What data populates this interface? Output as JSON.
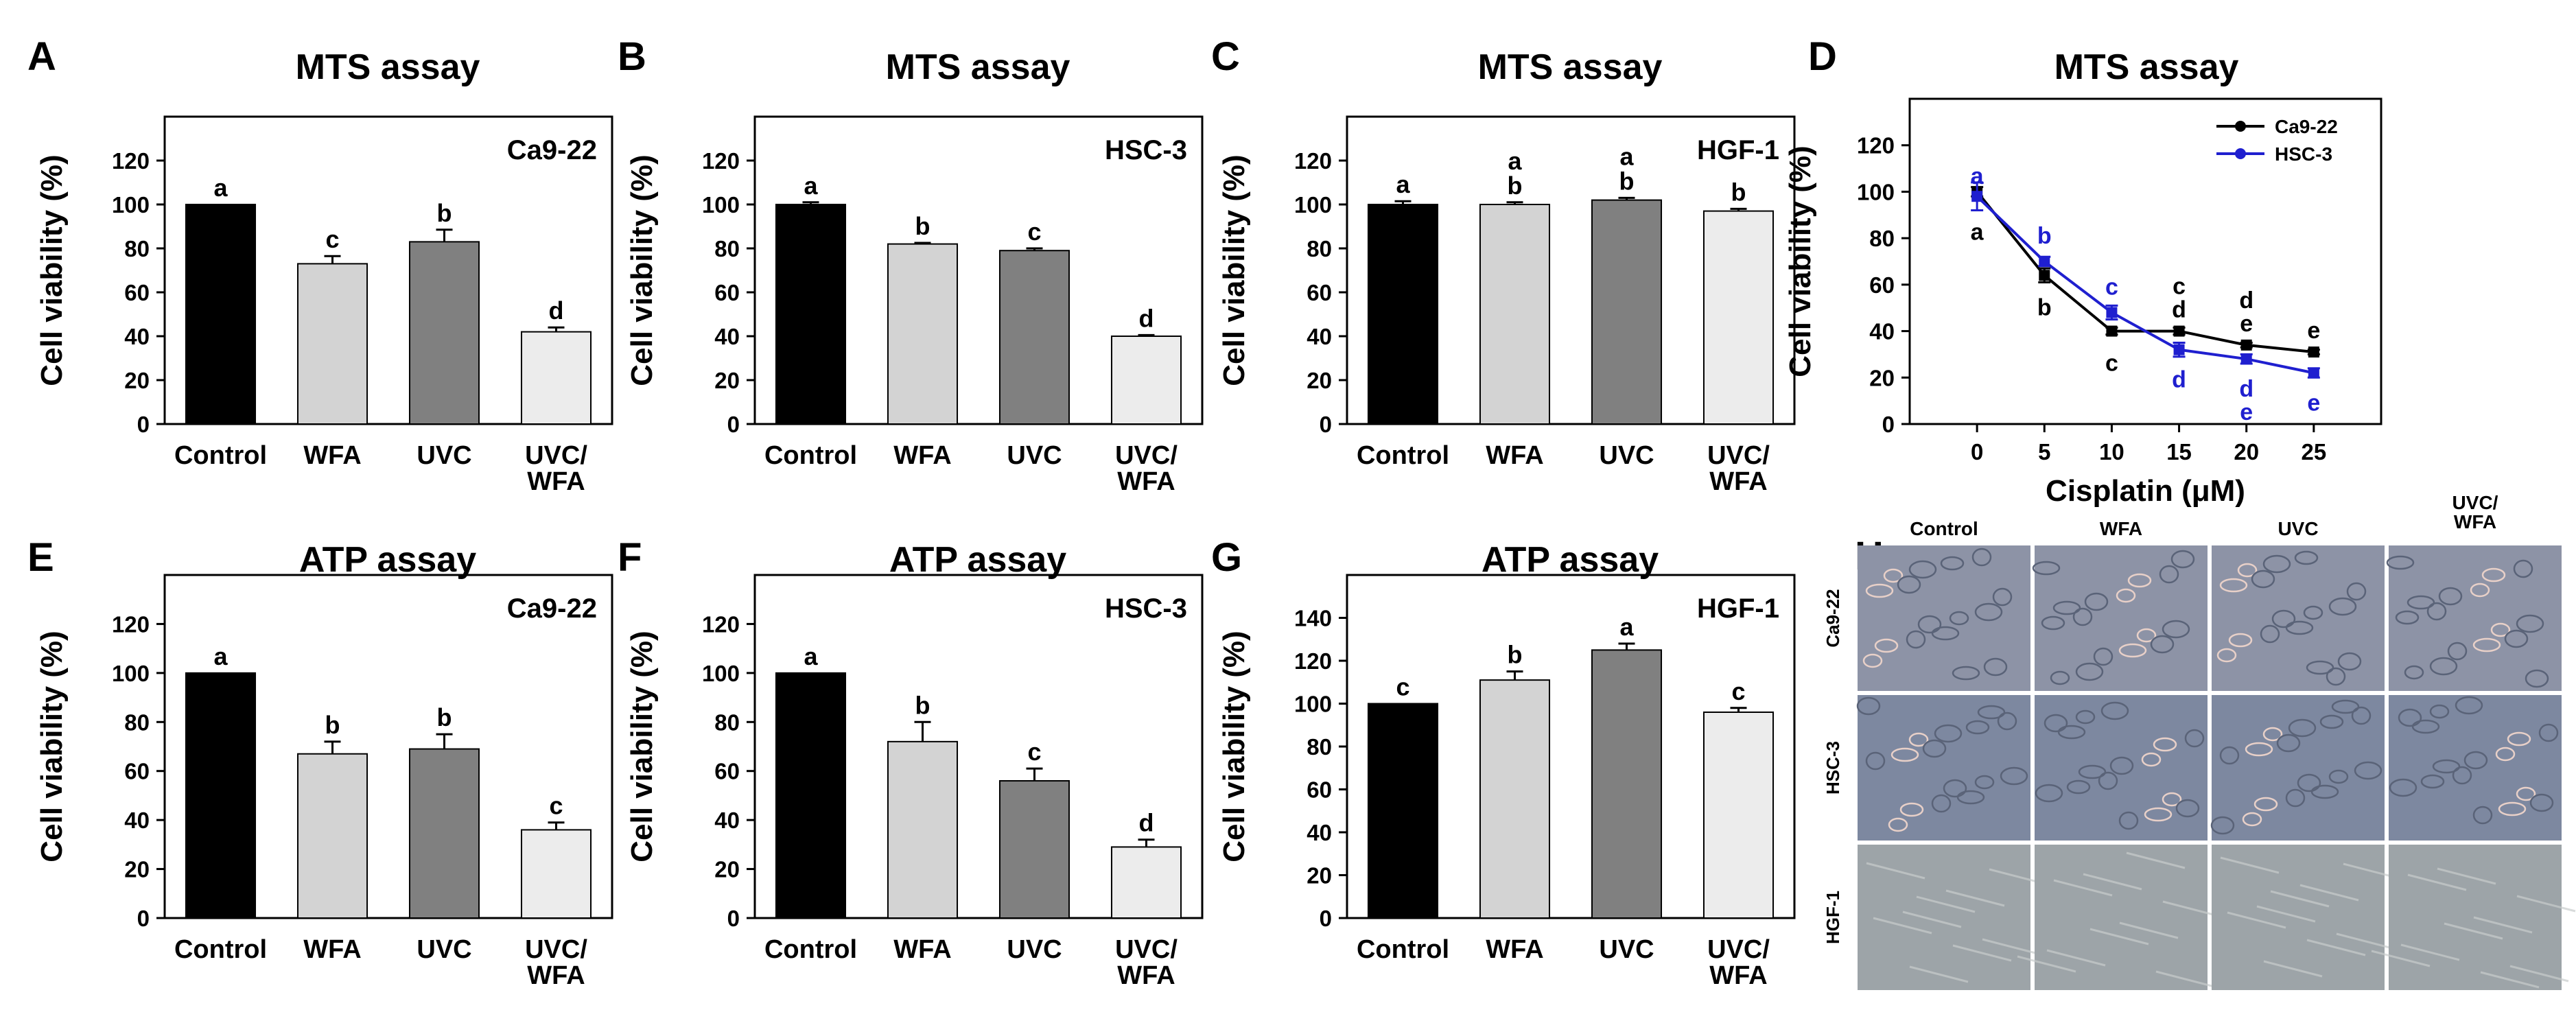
{
  "figure": {
    "panel_h": {
      "letter": "H",
      "columns": [
        "Control",
        "WFA",
        "UVC",
        "UVC/\nWFA"
      ],
      "rows": [
        "Ca9-22",
        "HSC-3",
        "HGF-1"
      ],
      "micrograph_colors": {
        "Ca9-22": "#8d93a6",
        "HSC-3": "#7d88a0",
        "HGF-1": "#9da4a8"
      }
    }
  },
  "chart_data": [
    {
      "panel": "A",
      "type": "bar",
      "title": "MTS assay",
      "inset_label": "Ca9-22",
      "ylabel": "Cell viability (%)",
      "xlabel": "",
      "ylim": [
        0,
        140
      ],
      "yticks": [
        0,
        20,
        40,
        60,
        80,
        100,
        120
      ],
      "categories": [
        "Control",
        "WFA",
        "UVC",
        "UVC/\nWFA"
      ],
      "values": [
        100,
        73,
        83,
        42
      ],
      "errors": [
        0,
        3.5,
        5.5,
        2
      ],
      "letters": [
        "a",
        "c",
        "b",
        "d"
      ],
      "colors": [
        "#000000",
        "#d3d3d3",
        "#808080",
        "#ececec"
      ],
      "grid": false
    },
    {
      "panel": "B",
      "type": "bar",
      "title": "MTS assay",
      "inset_label": "HSC-3",
      "ylabel": "Cell viability (%)",
      "xlabel": "",
      "ylim": [
        0,
        140
      ],
      "yticks": [
        0,
        20,
        40,
        60,
        80,
        100,
        120
      ],
      "categories": [
        "Control",
        "WFA",
        "UVC",
        "UVC/\nWFA"
      ],
      "values": [
        100,
        82,
        79,
        40
      ],
      "errors": [
        1,
        0.5,
        1,
        0.5
      ],
      "letters": [
        "a",
        "b",
        "c",
        "d"
      ],
      "colors": [
        "#000000",
        "#d3d3d3",
        "#808080",
        "#ececec"
      ],
      "grid": false
    },
    {
      "panel": "C",
      "type": "bar",
      "title": "MTS assay",
      "inset_label": "HGF-1",
      "ylabel": "Cell viability (%)",
      "xlabel": "",
      "ylim": [
        0,
        140
      ],
      "yticks": [
        0,
        20,
        40,
        60,
        80,
        100,
        120
      ],
      "categories": [
        "Control",
        "WFA",
        "UVC",
        "UVC/\nWFA"
      ],
      "values": [
        100,
        100,
        102,
        97
      ],
      "errors": [
        1.5,
        1,
        1,
        1
      ],
      "letters": [
        "a",
        "a\nb",
        "a\nb",
        "b"
      ],
      "colors": [
        "#000000",
        "#d3d3d3",
        "#808080",
        "#ececec"
      ],
      "grid": false
    },
    {
      "panel": "D",
      "type": "line",
      "title": "MTS assay",
      "ylabel": "Cell viability (%)",
      "xlabel": "Cisplatin (μM)",
      "ylim": [
        0,
        140
      ],
      "yticks": [
        0,
        20,
        40,
        60,
        80,
        100,
        120
      ],
      "xlim": [
        -5,
        30
      ],
      "xticks": [
        0,
        5,
        10,
        15,
        20,
        25
      ],
      "x": [
        0,
        5,
        10,
        15,
        20,
        25
      ],
      "series": [
        {
          "name": "Ca9-22",
          "color": "#000000",
          "values": [
            100,
            64,
            40,
            40,
            34,
            31
          ],
          "errors": [
            2,
            3,
            1.5,
            1.5,
            1,
            1
          ],
          "letters": [
            "a",
            "b",
            "c",
            "c\nd",
            "d\ne",
            "e"
          ]
        },
        {
          "name": "HSC-3",
          "color": "#1f1fcf",
          "values": [
            98,
            70,
            48,
            32,
            28,
            22
          ],
          "errors": [
            6,
            2,
            3,
            3,
            2,
            2
          ],
          "letters": [
            "a",
            "b",
            "c",
            "d",
            "d\ne",
            "e"
          ]
        }
      ],
      "legend": "top-right",
      "grid": false
    },
    {
      "panel": "E",
      "type": "bar",
      "title": "ATP assay",
      "inset_label": "Ca9-22",
      "ylabel": "Cell viability (%)",
      "xlabel": "",
      "ylim": [
        0,
        140
      ],
      "yticks": [
        0,
        20,
        40,
        60,
        80,
        100,
        120
      ],
      "categories": [
        "Control",
        "WFA",
        "UVC",
        "UVC/\nWFA"
      ],
      "values": [
        100,
        67,
        69,
        36
      ],
      "errors": [
        0,
        5,
        6,
        3
      ],
      "letters": [
        "a",
        "b",
        "b",
        "c"
      ],
      "colors": [
        "#000000",
        "#d3d3d3",
        "#808080",
        "#ececec"
      ],
      "grid": false
    },
    {
      "panel": "F",
      "type": "bar",
      "title": "ATP assay",
      "inset_label": "HSC-3",
      "ylabel": "Cell viability (%)",
      "xlabel": "",
      "ylim": [
        0,
        140
      ],
      "yticks": [
        0,
        20,
        40,
        60,
        80,
        100,
        120
      ],
      "categories": [
        "Control",
        "WFA",
        "UVC",
        "UVC/\nWFA"
      ],
      "values": [
        100,
        72,
        56,
        29
      ],
      "errors": [
        0,
        8,
        5,
        3
      ],
      "letters": [
        "a",
        "b",
        "c",
        "d"
      ],
      "colors": [
        "#000000",
        "#d3d3d3",
        "#808080",
        "#ececec"
      ],
      "grid": false
    },
    {
      "panel": "G",
      "type": "bar",
      "title": "ATP assay",
      "inset_label": "HGF-1",
      "ylabel": "Cell viability (%)",
      "xlabel": "",
      "ylim": [
        0,
        160
      ],
      "yticks": [
        0,
        20,
        40,
        60,
        80,
        100,
        120,
        140
      ],
      "categories": [
        "Control",
        "WFA",
        "UVC",
        "UVC/\nWFA"
      ],
      "values": [
        100,
        111,
        125,
        96
      ],
      "errors": [
        0,
        4,
        3,
        2
      ],
      "letters": [
        "c",
        "b",
        "a",
        "c"
      ],
      "colors": [
        "#000000",
        "#d3d3d3",
        "#808080",
        "#ececec"
      ],
      "grid": false
    }
  ]
}
